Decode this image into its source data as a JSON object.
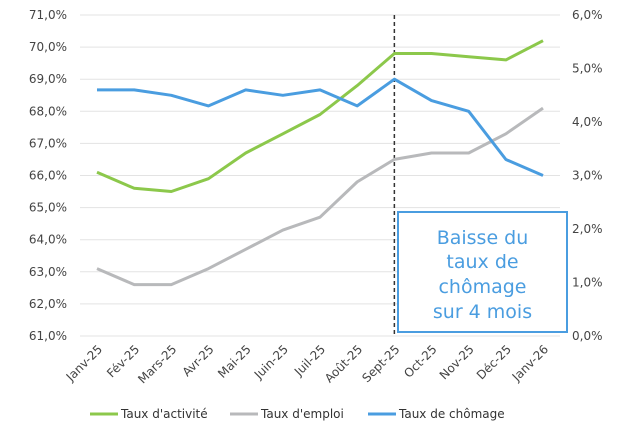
{
  "chart_data": {
    "type": "line",
    "title": "",
    "categories": [
      "Janv-25",
      "Fév-25",
      "Mars-25",
      "Avr-25",
      "Mai-25",
      "Juin-25",
      "Juil-25",
      "Août-25",
      "Sept-25",
      "Oct-25",
      "Nov-25",
      "Déc-25",
      "Janv-26"
    ],
    "series": [
      {
        "name": "Taux d'activité",
        "axis": "left",
        "color": "#8cc84b",
        "values": [
          66.1,
          65.6,
          65.5,
          65.9,
          66.7,
          67.3,
          67.9,
          68.8,
          69.8,
          69.8,
          69.7,
          69.6,
          70.2
        ]
      },
      {
        "name": "Taux d'emploi",
        "axis": "left",
        "color": "#b8b9bb",
        "values": [
          63.1,
          62.6,
          62.6,
          63.1,
          63.7,
          64.3,
          64.7,
          65.8,
          66.5,
          66.7,
          66.7,
          67.3,
          68.1
        ]
      },
      {
        "name": "Taux de chômage",
        "axis": "right",
        "color": "#4a9de0",
        "values": [
          4.6,
          4.6,
          4.5,
          4.3,
          4.6,
          4.5,
          4.6,
          4.3,
          4.8,
          4.4,
          4.2,
          3.3,
          3.0
        ]
      }
    ],
    "left_axis": {
      "ylim": [
        61,
        71
      ],
      "ticks": [
        "71,0%",
        "70,0%",
        "69,0%",
        "68,0%",
        "67,0%",
        "66,0%",
        "65,0%",
        "64,0%",
        "63,0%",
        "62,0%",
        "61,0%"
      ]
    },
    "right_axis": {
      "ylim": [
        0,
        6
      ],
      "ticks": [
        "6,0%",
        "5,0%",
        "4,0%",
        "3,0%",
        "2,0%",
        "1,0%",
        "0,0%"
      ]
    },
    "grid": true,
    "legend_placement": "bottom",
    "marker_category": "Sept-25",
    "annotation": {
      "lines": [
        "Baisse du",
        "taux de",
        "chômage",
        "sur 4 mois"
      ],
      "color": "#4a9de0"
    }
  }
}
